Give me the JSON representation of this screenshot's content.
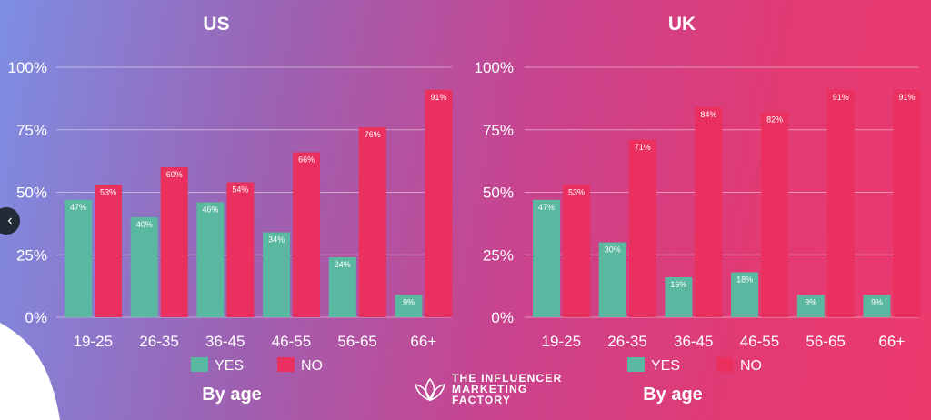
{
  "colors": {
    "yes": "#5bb8a0",
    "no": "#ea305e",
    "text": "#ffffff",
    "grid": "#ffffff"
  },
  "logo": {
    "icon": "lotus-logo-icon",
    "lines": [
      "THE INFLUENCER",
      "MARKETING",
      "FACTORY"
    ]
  },
  "nav": {
    "prev_label": "‹",
    "icon": "chevron-left-icon"
  },
  "chart_data": [
    {
      "type": "bar",
      "title": "US",
      "xlabel": "By age",
      "ylabel": "",
      "categories": [
        "19-25",
        "26-35",
        "36-45",
        "46-55",
        "56-65",
        "66+"
      ],
      "series": [
        {
          "name": "YES",
          "values": [
            47,
            40,
            46,
            34,
            24,
            9
          ]
        },
        {
          "name": "NO",
          "values": [
            53,
            60,
            54,
            66,
            76,
            91
          ]
        }
      ],
      "value_labels": {
        "YES": [
          "47%",
          "40%",
          "46%",
          "34%",
          "24%",
          "9%"
        ],
        "NO": [
          "53%",
          "60%",
          "54%",
          "66%",
          "76%",
          "91%"
        ]
      },
      "yticks": [
        "0%",
        "25%",
        "50%",
        "75%",
        "100%"
      ],
      "ylim": [
        0,
        100
      ],
      "grid": true,
      "legend": "bottom"
    },
    {
      "type": "bar",
      "title": "UK",
      "xlabel": "By age",
      "ylabel": "",
      "categories": [
        "19-25",
        "26-35",
        "36-45",
        "46-55",
        "56-65",
        "66+"
      ],
      "series": [
        {
          "name": "YES",
          "values": [
            47,
            30,
            16,
            18,
            9,
            9
          ]
        },
        {
          "name": "NO",
          "values": [
            53,
            71,
            84,
            82,
            91,
            91
          ]
        }
      ],
      "value_labels": {
        "YES": [
          "47%",
          "30%",
          "16%",
          "18%",
          "9%",
          "9%"
        ],
        "NO": [
          "53%",
          "71%",
          "84%",
          "82%",
          "91%",
          "91%"
        ]
      },
      "yticks": [
        "0%",
        "25%",
        "50%",
        "75%",
        "100%"
      ],
      "ylim": [
        0,
        100
      ],
      "grid": true,
      "legend": "bottom"
    }
  ]
}
